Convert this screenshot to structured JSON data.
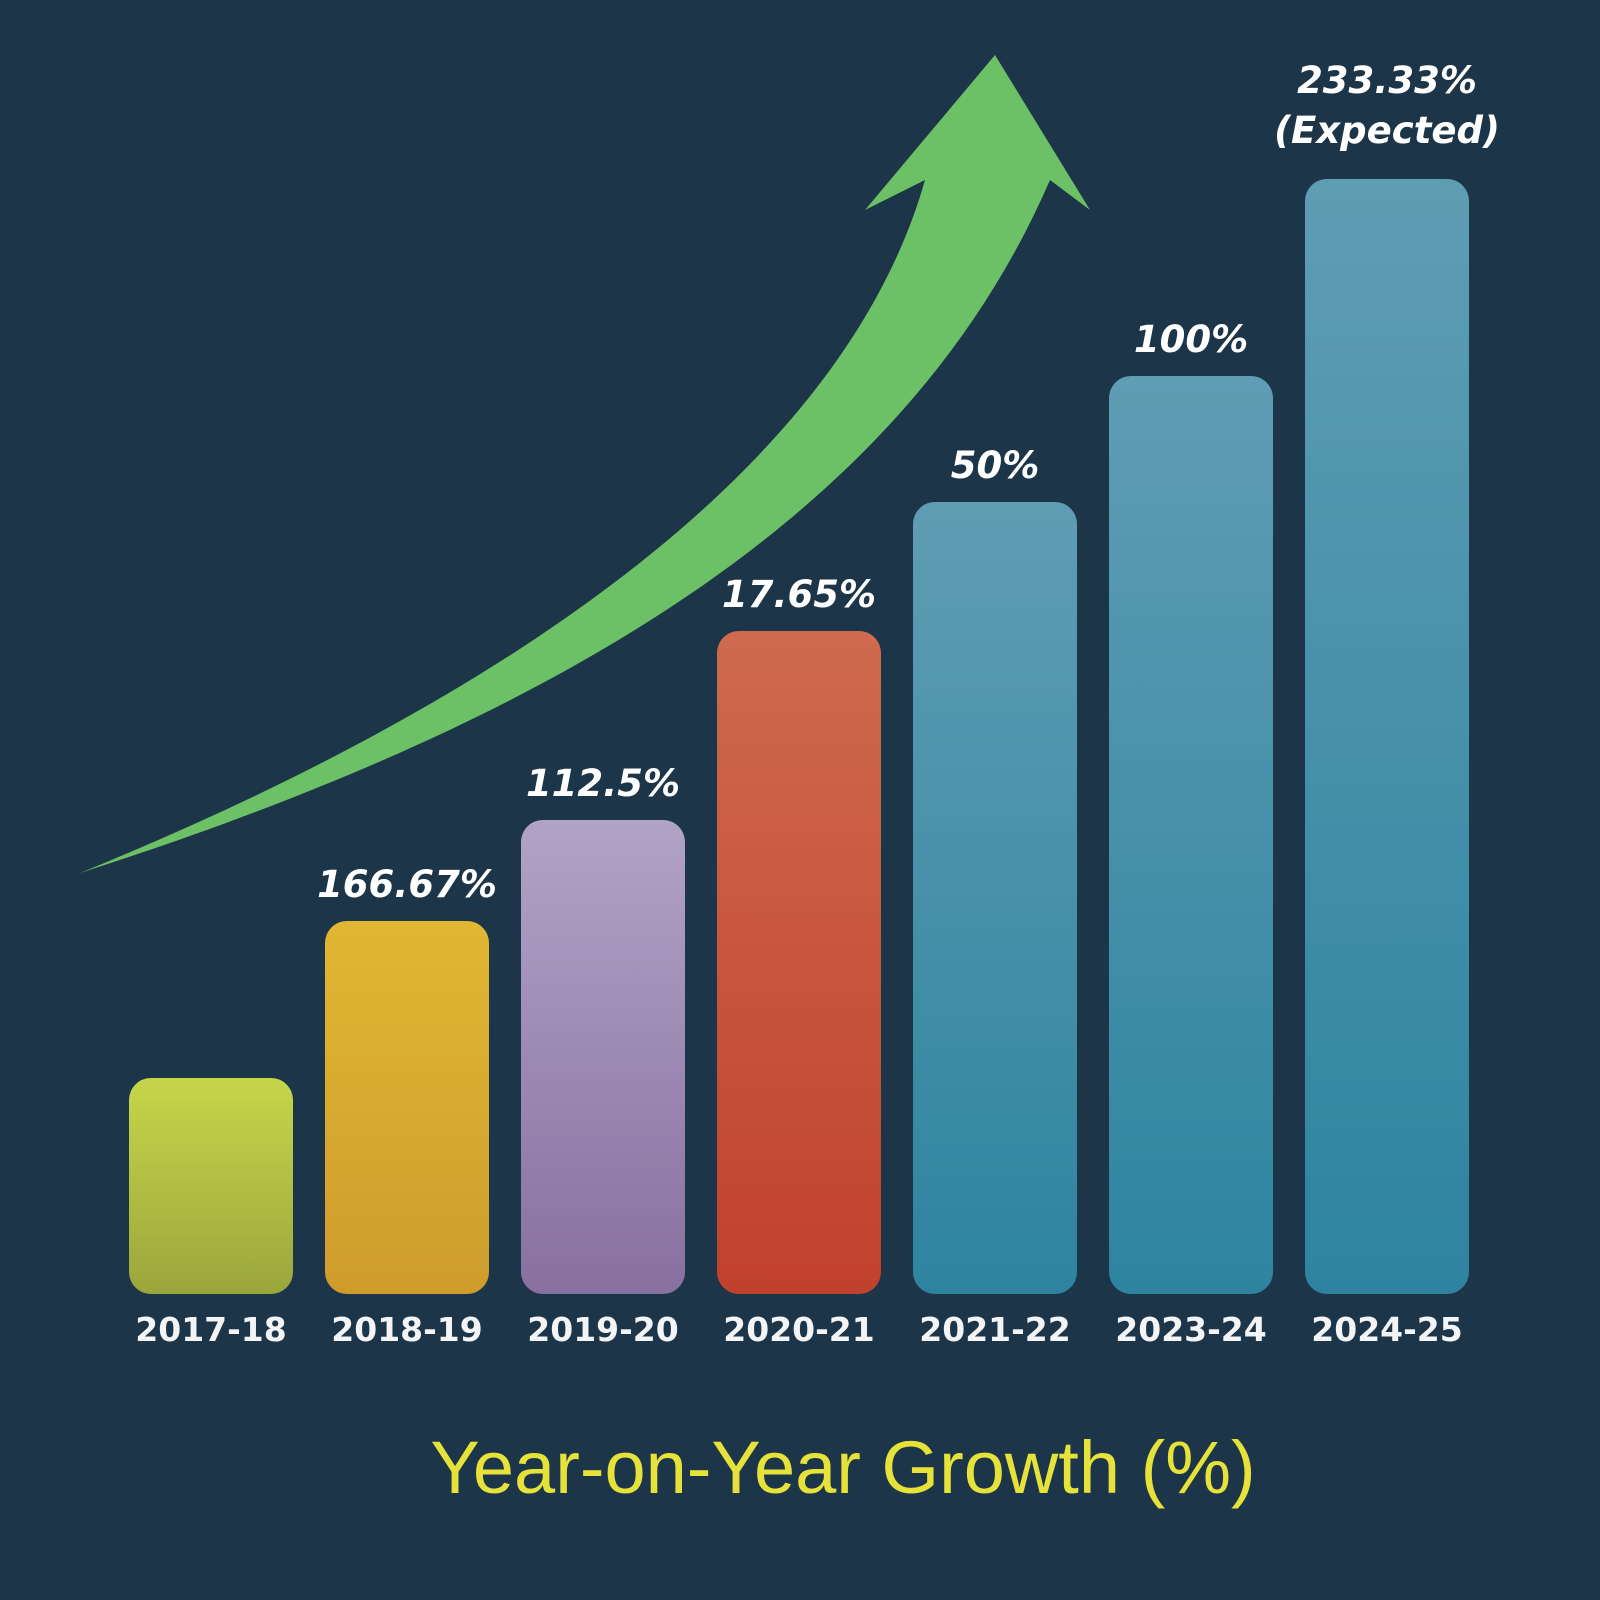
{
  "chart_data": {
    "type": "bar",
    "title": "Year-on-Year Growth (%)",
    "xlabel": "",
    "ylabel": "",
    "grid": false,
    "categories": [
      "2017-18",
      "2018-19",
      "2019-20",
      "2020-21",
      "2021-22",
      "2023-24",
      "2024-25"
    ],
    "value_labels": [
      "",
      "166.67%",
      "112.5%",
      "17.65%",
      "50%",
      "100%",
      "233.33%"
    ],
    "value_label_notes": [
      "",
      "",
      "",
      "",
      "",
      "",
      "(Expected)"
    ],
    "bar_colors": [
      [
        "#c6d64a",
        "#9aa63c"
      ],
      [
        "#e0b733",
        "#cf9c2c"
      ],
      [
        "#b1a3c6",
        "#8870a0"
      ],
      [
        "#cf6a4e",
        "#c1412c"
      ],
      [
        "#5f9db3",
        "#2e84a0"
      ],
      [
        "#5f9db3",
        "#2e84a0"
      ],
      [
        "#5f9db3",
        "#2e84a0"
      ]
    ],
    "decoration": "rising-trend-arrow",
    "arrow_color": "#6cc065"
  }
}
